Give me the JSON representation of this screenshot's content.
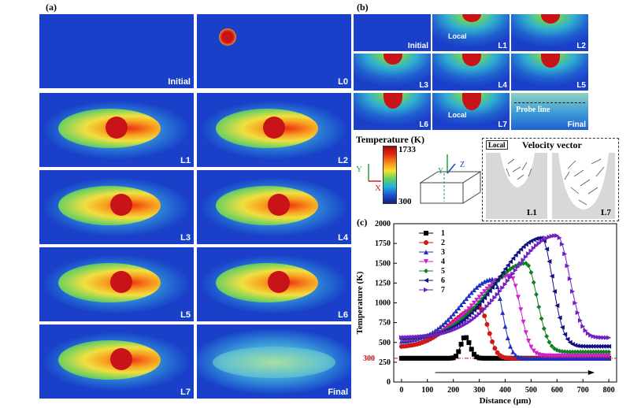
{
  "panel_a": {
    "label": "(a)",
    "tiles": [
      "Initial",
      "L0",
      "L1",
      "L2",
      "L3",
      "L4",
      "L5",
      "L6",
      "L7",
      "Final"
    ]
  },
  "panel_b": {
    "label": "(b)",
    "tiles": [
      "Initial",
      "L1",
      "L2",
      "L3",
      "L4",
      "L5",
      "L6",
      "L7",
      "Final"
    ],
    "local_tag": "Local",
    "probe_line": "Probe line",
    "colorbar_title": "Temperature (K)",
    "colorbar_max": "1733",
    "colorbar_min": "300",
    "axis_y": "Y",
    "axis_x": "X",
    "axis_z": "Z",
    "axis_y2": "Y",
    "velocity_title": "Velocity vector",
    "velocity_local": "Local",
    "velocity_l1": "L1",
    "velocity_l7": "L7"
  },
  "panel_c": {
    "label": "(c)"
  },
  "colors": {
    "field_bg": "#1a3fc8",
    "hot": "#c8141a",
    "warm": "#f0c020",
    "mid": "#30b0d0"
  },
  "chart_data": {
    "type": "line",
    "title": "",
    "xlabel": "Distance (μm)",
    "ylabel": "Temperature (K)",
    "xlim": [
      -30,
      830
    ],
    "ylim": [
      0,
      2000
    ],
    "xticks": [
      0,
      100,
      200,
      300,
      400,
      500,
      600,
      700,
      800
    ],
    "yticks": [
      0,
      250,
      500,
      750,
      1000,
      1250,
      1500,
      1750,
      2000
    ],
    "extra_ytick": 300,
    "reference_line": 300,
    "legend_position": "top-left",
    "series": [
      {
        "name": "1",
        "color": "#000000",
        "marker": "square",
        "peak_x": 245,
        "peak_y": 570,
        "width_left": 40,
        "width_right": 40,
        "base_left": 300,
        "base_right": 300
      },
      {
        "name": "2",
        "color": "#d01818",
        "marker": "circle",
        "peak_x": 300,
        "peak_y": 940,
        "width_left": 260,
        "width_right": 70,
        "base_left": 440,
        "base_right": 300
      },
      {
        "name": "3",
        "color": "#2030c0",
        "marker": "triangle-up",
        "peak_x": 355,
        "peak_y": 1300,
        "width_left": 300,
        "width_right": 70,
        "base_left": 500,
        "base_right": 300
      },
      {
        "name": "4",
        "color": "#d020d0",
        "marker": "triangle-down",
        "peak_x": 420,
        "peak_y": 1340,
        "width_left": 330,
        "width_right": 80,
        "base_left": 520,
        "base_right": 330
      },
      {
        "name": "5",
        "color": "#108020",
        "marker": "diamond",
        "peak_x": 480,
        "peak_y": 1500,
        "width_left": 370,
        "width_right": 90,
        "base_left": 540,
        "base_right": 380
      },
      {
        "name": "6",
        "color": "#101080",
        "marker": "triangle-left",
        "peak_x": 540,
        "peak_y": 1820,
        "width_left": 400,
        "width_right": 90,
        "base_left": 550,
        "base_right": 450
      },
      {
        "name": "7",
        "color": "#7020c0",
        "marker": "triangle-right",
        "peak_x": 600,
        "peak_y": 1850,
        "width_left": 430,
        "width_right": 100,
        "base_left": 560,
        "base_right": 560
      }
    ]
  }
}
